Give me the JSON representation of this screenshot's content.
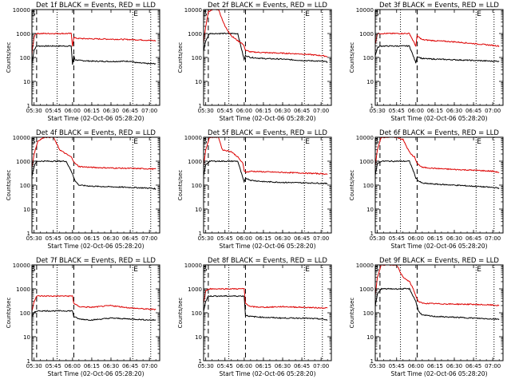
{
  "figure": {
    "xlabel": "Start Time (02-Oct-06 05:28:20)",
    "ylabel": "Counts/sec",
    "x_ticks": [
      "05:30",
      "05:45",
      "06:00",
      "06:15",
      "06:30",
      "06:45",
      "07:00"
    ],
    "y_ticks": [
      "1",
      "10",
      "100",
      "1000",
      "10000"
    ],
    "marker_S": "S",
    "marker_E": "E",
    "colors": {
      "events": "#000000",
      "lld": "#dd0000",
      "axes": "#000000"
    }
  },
  "chart_data": [
    {
      "type": "line",
      "title": "Det 1f BLACK = Events, RED = LLD",
      "xlim": [
        "05:28:20",
        "07:08:00"
      ],
      "ylim": [
        1,
        10000
      ],
      "yscale": "log",
      "dashed_x": [
        "05:32",
        "06:01"
      ],
      "dotted_x": [
        "05:48",
        "06:47",
        "07:01"
      ],
      "series": [
        {
          "name": "Events",
          "x": [
            "05:28",
            "05:29",
            "05:30",
            "05:31",
            "05:32",
            "05:35",
            "05:45",
            "05:55",
            "05:59",
            "06:00",
            "06:01",
            "06:02",
            "06:05",
            "06:15",
            "06:30",
            "06:45",
            "06:50",
            "07:00",
            "07:05"
          ],
          "values": [
            40,
            100,
            200,
            250,
            300,
            300,
            300,
            300,
            300,
            50,
            120,
            80,
            75,
            70,
            68,
            70,
            60,
            55,
            55
          ]
        },
        {
          "name": "LLD",
          "x": [
            "05:28",
            "05:29",
            "05:30",
            "05:31",
            "05:32",
            "05:35",
            "05:45",
            "05:55",
            "05:59",
            "06:00",
            "06:01",
            "06:02",
            "06:05",
            "06:15",
            "06:30",
            "06:45",
            "06:50",
            "07:00",
            "07:05"
          ],
          "values": [
            80,
            300,
            700,
            1000,
            1000,
            1000,
            1000,
            1000,
            1000,
            300,
            700,
            650,
            620,
            600,
            580,
            560,
            550,
            520,
            500
          ]
        }
      ]
    },
    {
      "type": "line",
      "title": "Det 2f BLACK = Events, RED = LLD",
      "xlim": [
        "05:28:20",
        "07:08:00"
      ],
      "ylim": [
        1,
        10000
      ],
      "yscale": "log",
      "dashed_x": [
        "05:32",
        "06:01"
      ],
      "dotted_x": [
        "05:48",
        "06:47",
        "07:01"
      ],
      "series": [
        {
          "name": "Events",
          "x": [
            "05:28",
            "05:30",
            "05:33",
            "05:35",
            "05:45",
            "05:55",
            "06:00",
            "06:01",
            "06:05",
            "06:15",
            "06:30",
            "06:45",
            "07:00",
            "07:05"
          ],
          "values": [
            150,
            500,
            1000,
            1000,
            1000,
            1000,
            80,
            120,
            100,
            90,
            85,
            75,
            70,
            65
          ]
        },
        {
          "name": "LLD",
          "x": [
            "05:28",
            "05:30",
            "05:32",
            "05:35",
            "05:40",
            "05:45",
            "05:50",
            "05:55",
            "05:58",
            "06:00",
            "06:01",
            "06:05",
            "06:15",
            "06:30",
            "06:45",
            "07:00",
            "07:05"
          ],
          "values": [
            300,
            2000,
            8000,
            10000,
            10000,
            2000,
            800,
            500,
            400,
            300,
            200,
            170,
            160,
            150,
            140,
            120,
            110
          ]
        }
      ]
    },
    {
      "type": "line",
      "title": "Det 3f BLACK = Events, RED = LLD",
      "xlim": [
        "05:28:20",
        "07:08:00"
      ],
      "ylim": [
        1,
        10000
      ],
      "yscale": "log",
      "dashed_x": [
        "05:32",
        "06:01"
      ],
      "dotted_x": [
        "05:48",
        "06:47",
        "07:01"
      ],
      "series": [
        {
          "name": "Events",
          "x": [
            "05:28",
            "05:30",
            "05:32",
            "05:35",
            "05:45",
            "05:55",
            "06:00",
            "06:01",
            "06:05",
            "06:15",
            "06:30",
            "06:45",
            "07:00",
            "07:05"
          ],
          "values": [
            100,
            250,
            300,
            300,
            300,
            300,
            60,
            110,
            90,
            85,
            80,
            75,
            70,
            70
          ]
        },
        {
          "name": "LLD",
          "x": [
            "05:28",
            "05:30",
            "05:32",
            "05:35",
            "05:45",
            "05:55",
            "06:00",
            "06:01",
            "06:05",
            "06:15",
            "06:30",
            "06:45",
            "07:00",
            "07:05"
          ],
          "values": [
            300,
            1000,
            1000,
            1000,
            1000,
            1000,
            300,
            800,
            550,
            500,
            450,
            380,
            320,
            300
          ]
        }
      ]
    },
    {
      "type": "line",
      "title": "Det 4f BLACK = Events, RED = LLD",
      "xlim": [
        "05:28:20",
        "07:08:00"
      ],
      "ylim": [
        1,
        10000
      ],
      "yscale": "log",
      "dashed_x": [
        "05:32",
        "06:01"
      ],
      "dotted_x": [
        "05:48",
        "06:47",
        "07:01"
      ],
      "series": [
        {
          "name": "Events",
          "x": [
            "05:28",
            "05:30",
            "05:32",
            "05:35",
            "05:45",
            "05:55",
            "06:00",
            "06:02",
            "06:05",
            "06:15",
            "06:30",
            "06:45",
            "07:00",
            "07:05"
          ],
          "values": [
            200,
            600,
            1000,
            1000,
            1000,
            1000,
            300,
            150,
            100,
            90,
            85,
            80,
            75,
            70
          ]
        },
        {
          "name": "LLD",
          "x": [
            "05:28",
            "05:30",
            "05:33",
            "05:38",
            "05:41",
            "05:45",
            "05:50",
            "05:55",
            "05:59",
            "06:02",
            "06:05",
            "06:15",
            "06:30",
            "06:45",
            "07:00",
            "07:05"
          ],
          "values": [
            400,
            2000,
            7000,
            10000,
            10000,
            10000,
            3000,
            2000,
            1500,
            800,
            600,
            550,
            520,
            500,
            480,
            470
          ]
        }
      ]
    },
    {
      "type": "line",
      "title": "Det 5f BLACK = Events, RED = LLD",
      "xlim": [
        "05:28:20",
        "07:08:00"
      ],
      "ylim": [
        1,
        10000
      ],
      "yscale": "log",
      "dashed_x": [
        "05:32",
        "06:01"
      ],
      "dotted_x": [
        "05:48",
        "06:47",
        "07:01"
      ],
      "series": [
        {
          "name": "Events",
          "x": [
            "05:28",
            "05:30",
            "05:33",
            "05:35",
            "05:45",
            "05:55",
            "06:00",
            "06:01",
            "06:05",
            "06:15",
            "06:30",
            "06:45",
            "07:00",
            "07:05"
          ],
          "values": [
            200,
            700,
            1000,
            1000,
            1000,
            1000,
            130,
            200,
            160,
            140,
            130,
            125,
            120,
            115
          ]
        },
        {
          "name": "LLD",
          "x": [
            "05:28",
            "05:30",
            "05:33",
            "05:35",
            "05:40",
            "05:43",
            "05:50",
            "05:55",
            "05:59",
            "06:00",
            "06:02",
            "06:05",
            "06:15",
            "06:30",
            "06:45",
            "07:00",
            "07:05"
          ],
          "values": [
            500,
            3000,
            10000,
            10000,
            10000,
            3000,
            2500,
            1500,
            800,
            400,
            350,
            380,
            360,
            340,
            320,
            300,
            290
          ]
        }
      ]
    },
    {
      "type": "line",
      "title": "Det 6f BLACK = Events, RED = LLD",
      "xlim": [
        "05:28:20",
        "07:08:00"
      ],
      "ylim": [
        1,
        10000
      ],
      "yscale": "log",
      "dashed_x": [
        "05:32",
        "06:01"
      ],
      "dotted_x": [
        "05:48",
        "06:47",
        "07:01"
      ],
      "series": [
        {
          "name": "Events",
          "x": [
            "05:28",
            "05:30",
            "05:33",
            "05:35",
            "05:45",
            "05:55",
            "05:58",
            "06:00",
            "06:02",
            "06:05",
            "06:15",
            "06:30",
            "06:45",
            "07:00",
            "07:05"
          ],
          "values": [
            200,
            800,
            1000,
            1000,
            1000,
            1000,
            400,
            200,
            150,
            120,
            110,
            100,
            90,
            80,
            75
          ]
        },
        {
          "name": "LLD",
          "x": [
            "05:28",
            "05:30",
            "05:33",
            "05:37",
            "05:40",
            "05:45",
            "05:50",
            "05:54",
            "05:56",
            "05:59",
            "06:01",
            "06:05",
            "06:15",
            "06:30",
            "06:45",
            "07:00",
            "07:05"
          ],
          "values": [
            500,
            3000,
            10000,
            10000,
            10000,
            10000,
            8000,
            3000,
            2000,
            1500,
            800,
            550,
            500,
            450,
            420,
            380,
            340
          ]
        }
      ]
    },
    {
      "type": "line",
      "title": "Det 7f BLACK = Events, RED = LLD",
      "xlim": [
        "05:28:20",
        "07:08:00"
      ],
      "ylim": [
        1,
        10000
      ],
      "yscale": "log",
      "dashed_x": [
        "05:32",
        "06:01"
      ],
      "dotted_x": [
        "05:48",
        "06:47",
        "07:01"
      ],
      "series": [
        {
          "name": "Events",
          "x": [
            "05:28",
            "05:30",
            "05:32",
            "05:35",
            "05:45",
            "05:55",
            "06:00",
            "06:01",
            "06:05",
            "06:15",
            "06:30",
            "06:45",
            "07:00",
            "07:05"
          ],
          "values": [
            60,
            100,
            120,
            120,
            120,
            120,
            120,
            70,
            55,
            50,
            60,
            55,
            50,
            50
          ]
        },
        {
          "name": "LLD",
          "x": [
            "05:28",
            "05:30",
            "05:32",
            "05:35",
            "05:45",
            "05:55",
            "06:00",
            "06:01",
            "06:05",
            "06:15",
            "06:30",
            "06:45",
            "07:00",
            "07:05"
          ],
          "values": [
            100,
            300,
            500,
            500,
            500,
            500,
            500,
            250,
            180,
            170,
            200,
            160,
            140,
            140
          ]
        }
      ]
    },
    {
      "type": "line",
      "title": "Det 8f BLACK = Events, RED = LLD",
      "xlim": [
        "05:28:20",
        "07:08:00"
      ],
      "ylim": [
        1,
        10000
      ],
      "yscale": "log",
      "dashed_x": [
        "05:32",
        "06:01"
      ],
      "dotted_x": [
        "05:48",
        "06:47",
        "07:01"
      ],
      "series": [
        {
          "name": "Events",
          "x": [
            "05:28",
            "05:30",
            "05:32",
            "05:35",
            "05:45",
            "05:55",
            "06:00",
            "06:01",
            "06:05",
            "06:15",
            "06:30",
            "06:45",
            "07:00",
            "07:05"
          ],
          "values": [
            100,
            300,
            500,
            500,
            500,
            500,
            500,
            80,
            70,
            65,
            60,
            60,
            55,
            50
          ]
        },
        {
          "name": "LLD",
          "x": [
            "05:28",
            "05:30",
            "05:32",
            "05:35",
            "05:45",
            "05:55",
            "06:00",
            "06:01",
            "06:05",
            "06:15",
            "06:30",
            "06:45",
            "07:00",
            "07:05"
          ],
          "values": [
            200,
            800,
            1000,
            1000,
            1000,
            1000,
            1000,
            250,
            180,
            170,
            180,
            170,
            160,
            160
          ]
        }
      ]
    },
    {
      "type": "line",
      "title": "Det 9f BLACK = Events, RED = LLD",
      "xlim": [
        "05:28:20",
        "07:08:00"
      ],
      "ylim": [
        1,
        10000
      ],
      "yscale": "log",
      "dashed_x": [
        "05:32",
        "06:01"
      ],
      "dotted_x": [
        "05:48",
        "06:47",
        "07:01"
      ],
      "series": [
        {
          "name": "Events",
          "x": [
            "05:28",
            "05:30",
            "05:33",
            "05:35",
            "05:45",
            "05:55",
            "06:00",
            "06:02",
            "06:05",
            "06:15",
            "06:30",
            "06:45",
            "07:00",
            "07:05"
          ],
          "values": [
            150,
            600,
            1000,
            1000,
            1000,
            1000,
            300,
            120,
            80,
            70,
            65,
            60,
            55,
            55
          ]
        },
        {
          "name": "LLD",
          "x": [
            "05:28",
            "05:30",
            "05:33",
            "05:37",
            "05:40",
            "05:45",
            "05:50",
            "05:55",
            "05:58",
            "06:00",
            "06:02",
            "06:05",
            "06:15",
            "06:30",
            "06:45",
            "07:00",
            "07:05"
          ],
          "values": [
            400,
            3000,
            10000,
            10000,
            10000,
            10000,
            3000,
            2000,
            1000,
            500,
            300,
            250,
            240,
            230,
            225,
            210,
            200
          ]
        }
      ]
    }
  ]
}
